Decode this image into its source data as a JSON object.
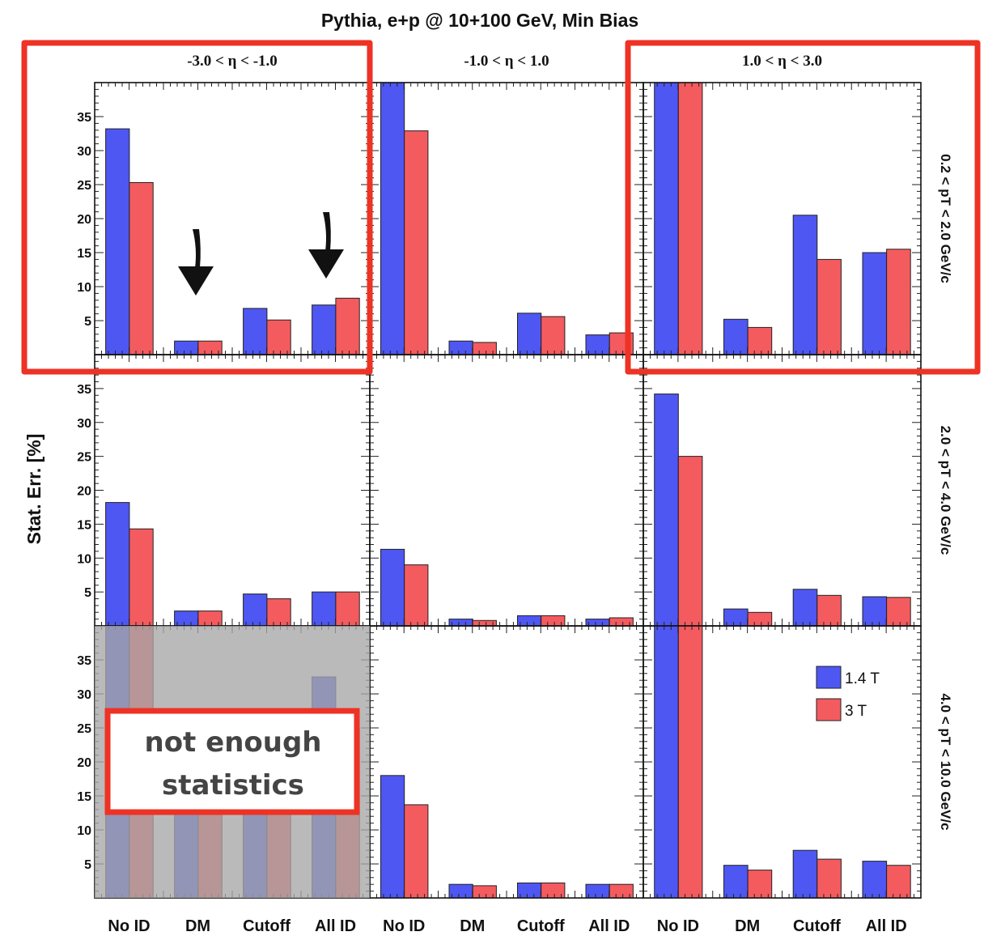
{
  "chart_data": {
    "type": "bar",
    "title": "Pythia, e+p @ 10+100 GeV, Min Bias",
    "ylabel": "Stat. Err. [%]",
    "ylim": [
      0,
      40
    ],
    "yticks": [
      5,
      10,
      15,
      20,
      25,
      30,
      35
    ],
    "categories": [
      "No ID",
      "DM",
      "Cutoff",
      "All ID"
    ],
    "columns": [
      "-3.0 < η < -1.0",
      "-1.0 < η < 1.0",
      "1.0 < η < 3.0"
    ],
    "rows": [
      "0.2 < pT < 2.0 GeV/c",
      "2.0 < pT < 4.0 GeV/c",
      "4.0 < pT < 10.0 GeV/c"
    ],
    "series_names": [
      "1.4 T",
      "3 T"
    ],
    "colors": {
      "1.4 T": "#4e57f2",
      "3 T": "#f45b5f",
      "highlight": "#ee3224",
      "shade": "#a6a6a6"
    },
    "panels": [
      [
        {
          "series": [
            {
              "name": "1.4 T",
              "values": [
                33.2,
                2.0,
                6.8,
                7.3
              ]
            },
            {
              "name": "3 T",
              "values": [
                25.3,
                2.0,
                5.1,
                8.3
              ]
            }
          ]
        },
        {
          "series": [
            {
              "name": "1.4 T",
              "values": [
                40,
                2.0,
                6.1,
                2.9
              ]
            },
            {
              "name": "3 T",
              "values": [
                32.9,
                1.8,
                5.6,
                3.2
              ]
            }
          ]
        },
        {
          "series": [
            {
              "name": "1.4 T",
              "values": [
                40,
                5.2,
                20.5,
                15.0
              ]
            },
            {
              "name": "3 T",
              "values": [
                40,
                4.0,
                14.0,
                15.5
              ]
            }
          ]
        }
      ],
      [
        {
          "series": [
            {
              "name": "1.4 T",
              "values": [
                18.2,
                2.2,
                4.7,
                5.0
              ]
            },
            {
              "name": "3 T",
              "values": [
                14.3,
                2.2,
                4.0,
                5.0
              ]
            }
          ]
        },
        {
          "series": [
            {
              "name": "1.4 T",
              "values": [
                11.3,
                1.0,
                1.5,
                1.0
              ]
            },
            {
              "name": "3 T",
              "values": [
                9.0,
                0.8,
                1.5,
                1.2
              ]
            }
          ]
        },
        {
          "series": [
            {
              "name": "1.4 T",
              "values": [
                34.2,
                2.5,
                5.4,
                4.3
              ]
            },
            {
              "name": "3 T",
              "values": [
                25.0,
                2.0,
                4.5,
                4.2
              ]
            }
          ]
        }
      ],
      [
        {
          "series": [
            {
              "name": "1.4 T",
              "values": [
                40,
                25.0,
                25.0,
                32.5
              ]
            },
            {
              "name": "3 T",
              "values": [
                40,
                25.0,
                25.0,
                25.0
              ]
            }
          ]
        },
        {
          "series": [
            {
              "name": "1.4 T",
              "values": [
                18.0,
                2.0,
                2.2,
                2.0
              ]
            },
            {
              "name": "3 T",
              "values": [
                13.7,
                1.8,
                2.2,
                2.0
              ]
            }
          ]
        },
        {
          "series": [
            {
              "name": "1.4 T",
              "values": [
                40,
                4.8,
                7.0,
                5.4
              ]
            },
            {
              "name": "3 T",
              "values": [
                40,
                4.1,
                5.7,
                4.8
              ]
            }
          ]
        }
      ]
    ],
    "annotations": {
      "highlighted_panels": [
        "row 0, column 0",
        "row 0, column 2"
      ],
      "arrows_on": [
        "DM",
        "All ID"
      ],
      "shaded_panel": "row 2, column 0",
      "note": [
        "not enough",
        "statistics"
      ]
    },
    "grid": false,
    "legend_placement": "top-right of bottom-right panel"
  }
}
